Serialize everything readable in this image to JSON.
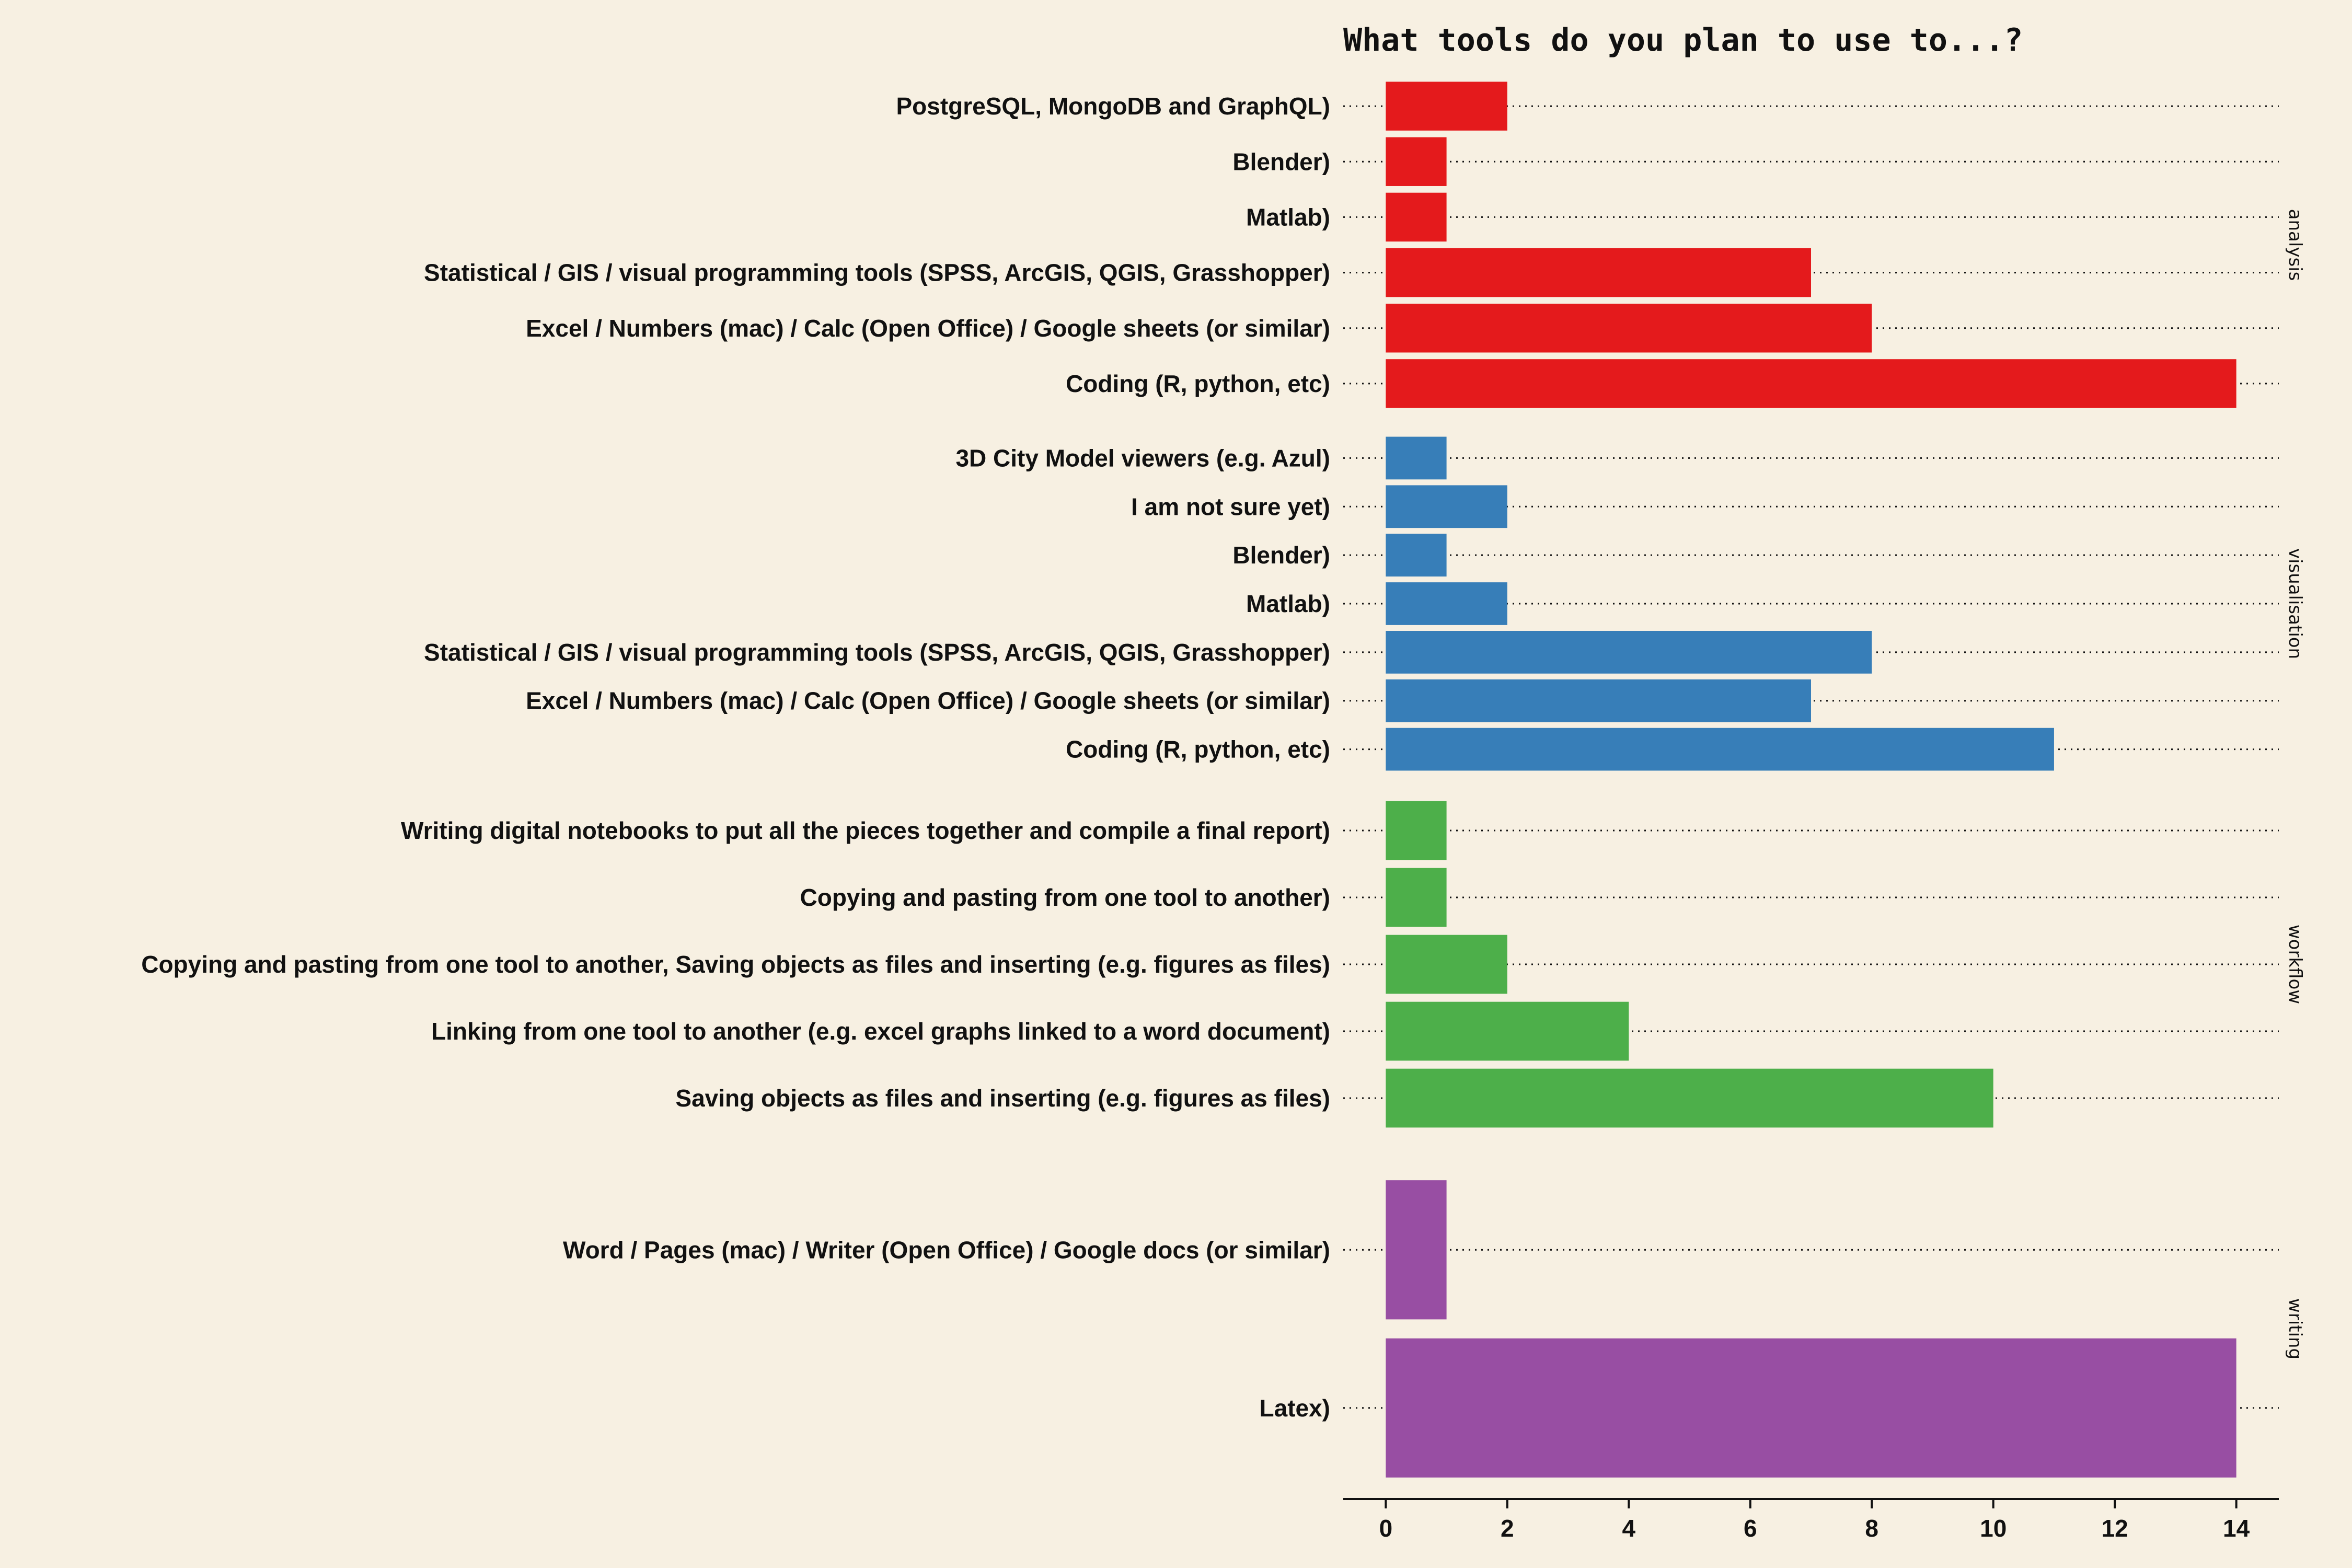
{
  "chart_data": {
    "type": "bar",
    "orientation": "horizontal",
    "title": "What tools do you plan to use to...?",
    "xlabel": "",
    "ylabel": "",
    "xlim": [
      -0.7,
      14.7
    ],
    "xticks": [
      0,
      2,
      4,
      6,
      8,
      10,
      12,
      14
    ],
    "grid": "dotted horizontal lines per category",
    "legend": "none",
    "facets": [
      {
        "name": "analysis",
        "color": "#e41a1c",
        "categories": [
          "PostgreSQL, MongoDB and GraphQL)",
          "Blender)",
          "Matlab)",
          "Statistical / GIS / visual programming tools (SPSS, ArcGIS, QGIS, Grasshopper)",
          "Excel / Numbers (mac) / Calc (Open Office) / Google sheets (or similar)",
          "Coding (R, python, etc)"
        ],
        "values": [
          2,
          1,
          1,
          7,
          8,
          14
        ]
      },
      {
        "name": "visualisation",
        "color": "#377eb8",
        "categories": [
          "3D City Model viewers (e.g. Azul)",
          "I am not sure yet)",
          "Blender)",
          "Matlab)",
          "Statistical / GIS / visual programming tools (SPSS, ArcGIS, QGIS, Grasshopper)",
          "Excel / Numbers (mac) / Calc (Open Office) / Google sheets (or similar)",
          "Coding (R, python, etc)"
        ],
        "values": [
          1,
          2,
          1,
          2,
          8,
          7,
          11
        ]
      },
      {
        "name": "workflow",
        "color": "#4daf4a",
        "categories": [
          "Writing digital notebooks to put all the pieces together and compile a final report)",
          "Copying and pasting from one tool to another)",
          "Copying and pasting from one tool to another, Saving objects as files and inserting (e.g. figures as files)",
          "Linking from one tool to another (e.g. excel graphs linked to a word document)",
          "Saving objects as files and inserting (e.g. figures as files)"
        ],
        "values": [
          1,
          1,
          2,
          4,
          10
        ]
      },
      {
        "name": "writing",
        "color": "#984ea3",
        "categories": [
          "Word / Pages (mac) / Writer (Open Office) / Google docs (or similar)",
          "Latex)"
        ],
        "values": [
          1,
          14
        ]
      }
    ]
  }
}
